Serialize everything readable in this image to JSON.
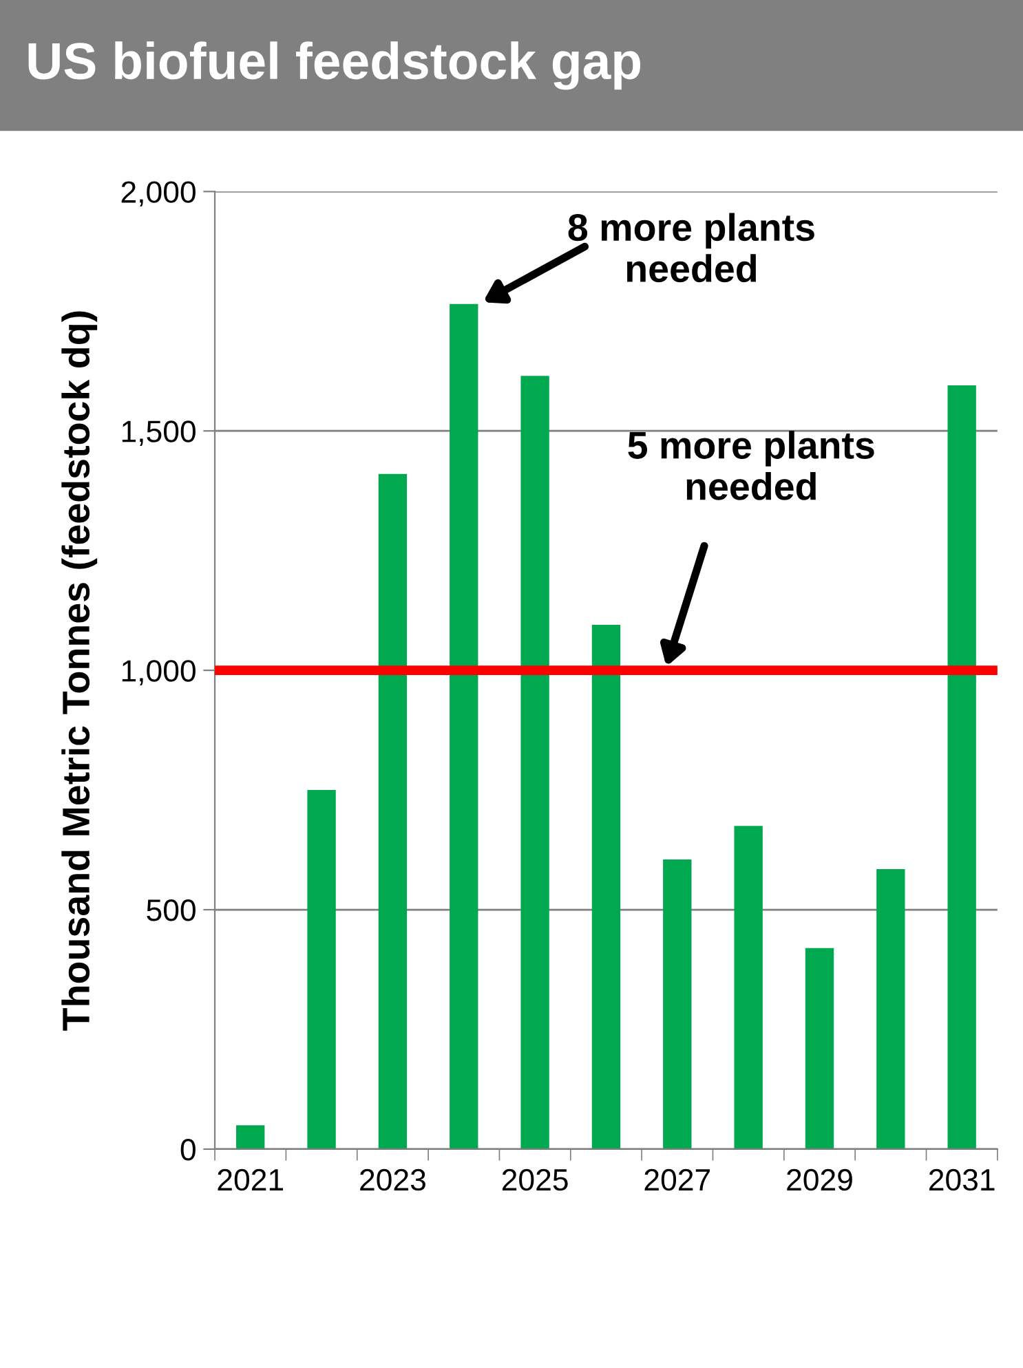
{
  "chart_data": {
    "type": "bar",
    "title": "US biofuel feedstock gap",
    "ylabel": "Thousand Metric Tonnes (feedstock dq)",
    "categories": [
      "2021",
      null,
      "2023",
      null,
      "2025",
      null,
      "2027",
      null,
      "2029",
      null,
      "2031"
    ],
    "values": [
      50,
      750,
      1410,
      1765,
      1615,
      1095,
      605,
      675,
      420,
      585,
      1595
    ],
    "color": "#00a84f",
    "ylim": [
      0,
      2000
    ],
    "yticks": [
      0,
      500,
      {
        "value": 1000,
        "label": "1,000"
      },
      {
        "value": 1500,
        "label": "1,500"
      },
      {
        "value": 2000,
        "label": "2,000"
      }
    ],
    "grid": "y",
    "ref_lines": [
      {
        "axis": "y",
        "value": 1000,
        "color": "#ff0000"
      }
    ],
    "annotations": [
      "8 more plants\nneeded",
      "5 more plants\nneeded"
    ]
  }
}
